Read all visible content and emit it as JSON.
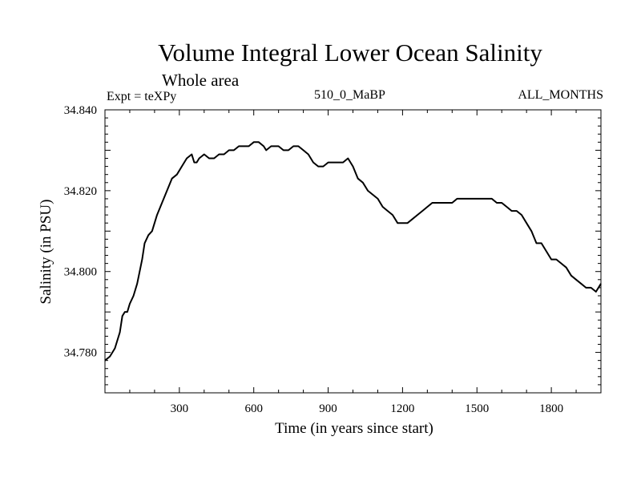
{
  "header": {
    "title": "Volume Integral Lower Ocean Salinity",
    "subtitle": "Whole area",
    "expt_label": "Expt = teXPy",
    "run_label": "510_0_MaBP",
    "months_label": "ALL_MONTHS"
  },
  "chart_data": {
    "type": "line",
    "title": "Volume Integral Lower Ocean Salinity",
    "subtitle": "Whole area",
    "xlabel": "Time (in years since start)",
    "ylabel": "Salinity (in PSU)",
    "xlim": [
      0,
      2000
    ],
    "ylim": [
      34.77,
      34.84
    ],
    "x_ticks": [
      300,
      600,
      900,
      1200,
      1500,
      1800
    ],
    "x_tick_labels": [
      "300",
      "600",
      "900",
      "1200",
      "1500",
      "1800"
    ],
    "y_ticks": [
      34.78,
      34.8,
      34.82,
      34.84
    ],
    "y_tick_labels": [
      "34.780",
      "34.800",
      "34.820",
      "34.840"
    ],
    "grid": false,
    "line_color": "#000000",
    "series": [
      {
        "x": [
          0,
          20,
          40,
          60,
          70,
          80,
          90,
          100,
          115,
          130,
          150,
          160,
          175,
          190,
          210,
          230,
          250,
          270,
          290,
          310,
          330,
          350,
          360,
          370,
          380,
          400,
          420,
          440,
          460,
          480,
          500,
          520,
          540,
          560,
          580,
          600,
          620,
          640,
          650,
          670,
          700,
          720,
          740,
          760,
          780,
          800,
          820,
          840,
          860,
          880,
          900,
          920,
          940,
          960,
          980,
          1000,
          1020,
          1040,
          1060,
          1080,
          1100,
          1120,
          1140,
          1160,
          1180,
          1200,
          1220,
          1240,
          1260,
          1280,
          1300,
          1320,
          1340,
          1360,
          1380,
          1400,
          1420,
          1440,
          1460,
          1480,
          1500,
          1520,
          1540,
          1560,
          1580,
          1600,
          1620,
          1640,
          1660,
          1680,
          1700,
          1720,
          1740,
          1760,
          1780,
          1800,
          1820,
          1840,
          1860,
          1880,
          1900,
          1920,
          1940,
          1960,
          1980,
          2000
        ],
        "values": [
          34.778,
          34.779,
          34.781,
          34.785,
          34.789,
          34.79,
          34.79,
          34.792,
          34.794,
          34.797,
          34.803,
          34.807,
          34.809,
          34.81,
          34.814,
          34.817,
          34.82,
          34.823,
          34.824,
          34.826,
          34.828,
          34.829,
          34.827,
          34.827,
          34.828,
          34.829,
          34.828,
          34.828,
          34.829,
          34.829,
          34.83,
          34.83,
          34.831,
          34.831,
          34.831,
          34.832,
          34.832,
          34.831,
          34.83,
          34.831,
          34.831,
          34.83,
          34.83,
          34.831,
          34.831,
          34.83,
          34.829,
          34.827,
          34.826,
          34.826,
          34.827,
          34.827,
          34.827,
          34.827,
          34.828,
          34.826,
          34.823,
          34.822,
          34.82,
          34.819,
          34.818,
          34.816,
          34.815,
          34.814,
          34.812,
          34.812,
          34.812,
          34.813,
          34.814,
          34.815,
          34.816,
          34.817,
          34.817,
          34.817,
          34.817,
          34.817,
          34.818,
          34.818,
          34.818,
          34.818,
          34.818,
          34.818,
          34.818,
          34.818,
          34.817,
          34.817,
          34.816,
          34.815,
          34.815,
          34.814,
          34.812,
          34.81,
          34.807,
          34.807,
          34.805,
          34.803,
          34.803,
          34.802,
          34.801,
          34.799,
          34.798,
          34.797,
          34.796,
          34.796,
          34.795,
          34.797
        ]
      }
    ]
  }
}
